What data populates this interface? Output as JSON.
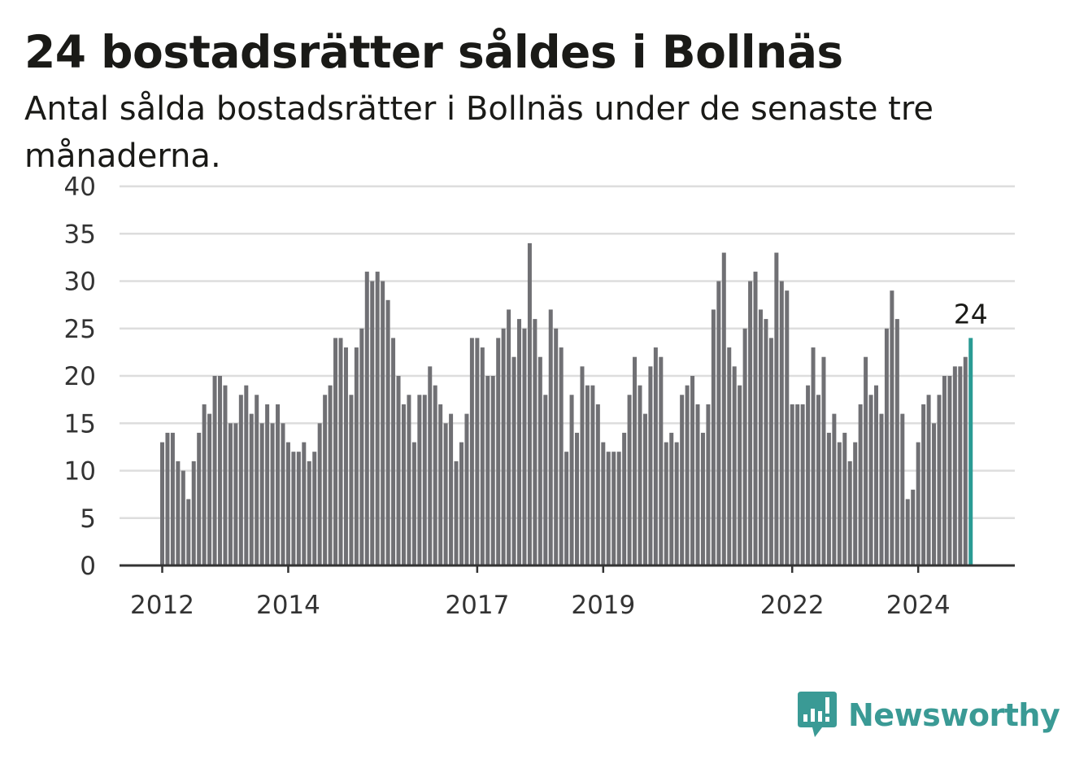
{
  "title": "24 bostadsrätter såldes i Bollnäs",
  "subtitle": "Antal sålda bostadsrätter i Bollnäs under de senaste tre månaderna.",
  "brand": "Newsworthy",
  "colors": {
    "bar": "#707074",
    "highlight": "#2a9b94",
    "grid": "#dddddd",
    "axis": "#333333",
    "brand": "#3a9a95"
  },
  "chart_data": {
    "type": "bar",
    "title": "24 bostadsrätter såldes i Bollnäs",
    "subtitle": "Antal sålda bostadsrätter i Bollnäs under de senaste tre månaderna.",
    "xlabel": "",
    "ylabel": "",
    "ylim": [
      0,
      40
    ],
    "yticks": [
      "0",
      "5",
      "10",
      "15",
      "20",
      "25",
      "30",
      "35",
      "40"
    ],
    "grid": true,
    "start": "2012-01",
    "xticks": [
      {
        "label": "2012",
        "index": 0
      },
      {
        "label": "2014",
        "index": 24
      },
      {
        "label": "2017",
        "index": 60
      },
      {
        "label": "2019",
        "index": 84
      },
      {
        "label": "2022",
        "index": 120
      },
      {
        "label": "2024",
        "index": 144
      }
    ],
    "values": [
      13,
      14,
      14,
      11,
      10,
      7,
      11,
      14,
      17,
      16,
      20,
      20,
      19,
      15,
      15,
      18,
      19,
      16,
      18,
      15,
      17,
      15,
      17,
      15,
      13,
      12,
      12,
      13,
      11,
      12,
      15,
      18,
      19,
      24,
      24,
      23,
      18,
      23,
      25,
      31,
      30,
      31,
      30,
      28,
      24,
      20,
      17,
      18,
      13,
      18,
      18,
      21,
      19,
      17,
      15,
      16,
      11,
      13,
      16,
      24,
      24,
      23,
      20,
      20,
      24,
      25,
      27,
      22,
      26,
      25,
      34,
      26,
      22,
      18,
      27,
      25,
      23,
      12,
      18,
      14,
      21,
      19,
      19,
      17,
      13,
      12,
      12,
      12,
      14,
      18,
      22,
      19,
      16,
      21,
      23,
      22,
      13,
      14,
      13,
      18,
      19,
      20,
      17,
      14,
      17,
      27,
      30,
      33,
      23,
      21,
      19,
      25,
      30,
      31,
      27,
      26,
      24,
      33,
      30,
      29,
      17,
      17,
      17,
      19,
      23,
      18,
      22,
      14,
      16,
      13,
      14,
      11,
      13,
      17,
      22,
      18,
      19,
      16,
      25,
      29,
      26,
      16,
      7,
      8,
      13,
      17,
      18,
      15,
      18,
      20,
      20,
      21,
      21,
      22,
      24
    ],
    "highlight_last": true,
    "annotation": "24"
  }
}
